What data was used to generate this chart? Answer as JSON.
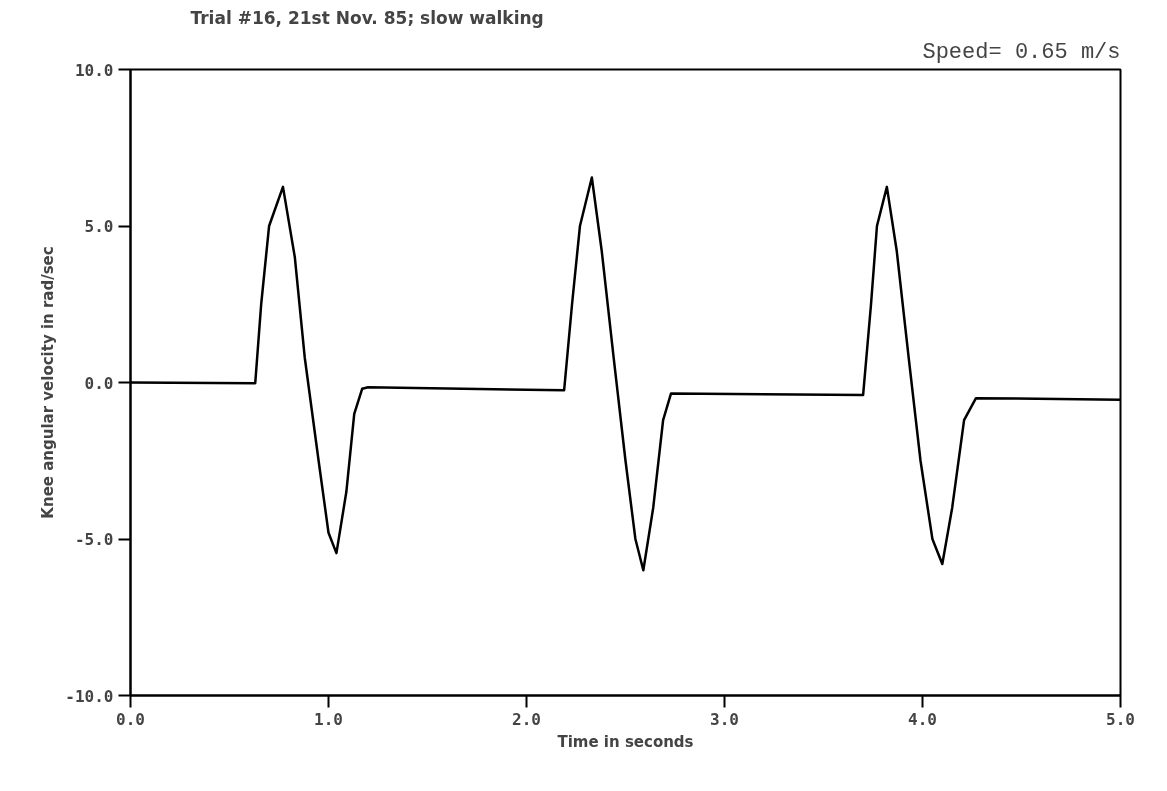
{
  "chart_data": {
    "type": "line",
    "title": "Trial #16, 21st Nov. 85; slow walking",
    "subtitle": "Speed= 0.65 m/s",
    "xlabel": "Time in seconds",
    "ylabel": "Knee angular velocity in rad/sec",
    "xlim": [
      0,
      5
    ],
    "ylim": [
      -10,
      10
    ],
    "xticks": [
      {
        "value": 0,
        "label": "0.0"
      },
      {
        "value": 1,
        "label": "1.0"
      },
      {
        "value": 2,
        "label": "2.0"
      },
      {
        "value": 3,
        "label": "3.0"
      },
      {
        "value": 4,
        "label": "4.0"
      },
      {
        "value": 5,
        "label": "5.0"
      }
    ],
    "yticks": [
      {
        "value": -10,
        "label": "-10.0"
      },
      {
        "value": -5,
        "label": "-5.0"
      },
      {
        "value": 0,
        "label": "0.0"
      },
      {
        "value": 5,
        "label": "5.0"
      },
      {
        "value": 10,
        "label": "10.0"
      }
    ],
    "grid": false,
    "marker": "none",
    "line_style": "solid",
    "series": [
      {
        "color": "#000000",
        "x": [
          0.0,
          0.63,
          0.66,
          0.7,
          0.77,
          0.83,
          0.88,
          0.95,
          1.0,
          1.04,
          1.09,
          1.13,
          1.17,
          1.2,
          2.19,
          2.23,
          2.27,
          2.33,
          2.38,
          2.44,
          2.5,
          2.55,
          2.59,
          2.64,
          2.69,
          2.73,
          3.7,
          3.74,
          3.77,
          3.82,
          3.87,
          3.93,
          3.99,
          4.05,
          4.1,
          4.15,
          4.21,
          4.27,
          5.0
        ],
        "values": [
          0.0,
          -0.02,
          2.5,
          5.0,
          6.25,
          4.0,
          0.8,
          -2.5,
          -4.8,
          -5.45,
          -3.5,
          -1.0,
          -0.2,
          -0.15,
          -0.25,
          2.5,
          5.0,
          6.55,
          4.2,
          0.8,
          -2.5,
          -5.0,
          -6.0,
          -4.0,
          -1.2,
          -0.35,
          -0.4,
          2.5,
          5.0,
          6.25,
          4.2,
          0.8,
          -2.5,
          -5.0,
          -5.8,
          -4.0,
          -1.2,
          -0.5,
          -0.55
        ]
      }
    ]
  }
}
